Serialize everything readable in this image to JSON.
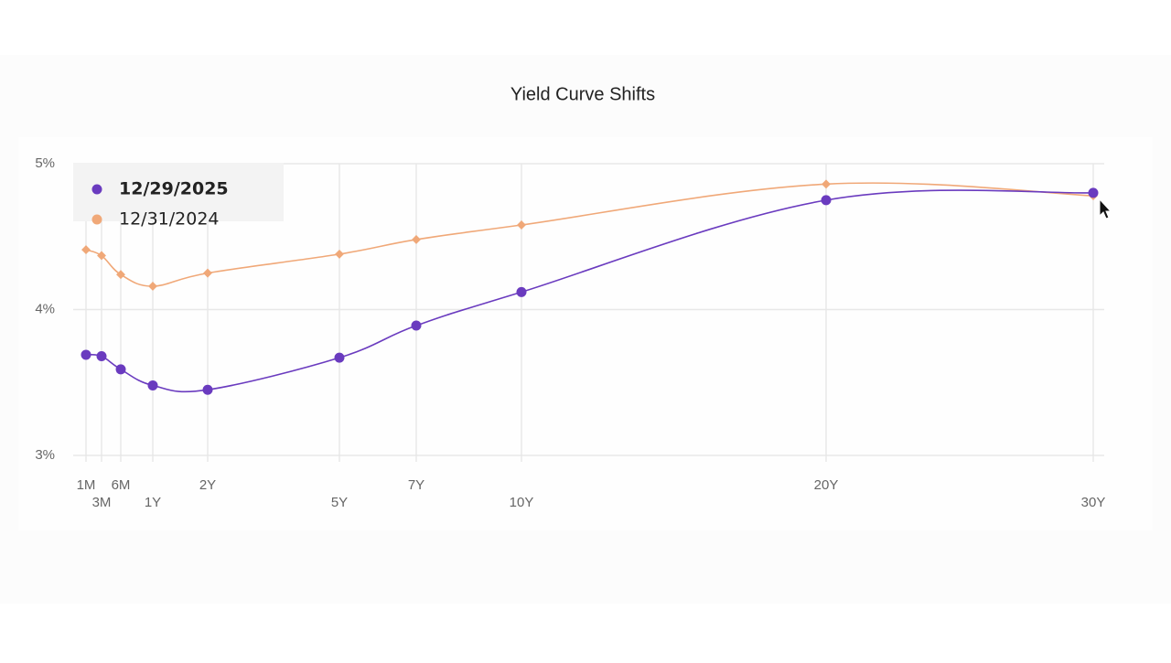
{
  "chart_data": {
    "type": "line",
    "title": "Yield Curve Shifts",
    "categories": [
      "1M",
      "3M",
      "6M",
      "1Y",
      "2Y",
      "5Y",
      "7Y",
      "10Y",
      "20Y",
      "30Y"
    ],
    "series": [
      {
        "name": "12/29/2025",
        "color": "#6a3bbf",
        "values": [
          3.69,
          3.68,
          3.59,
          3.48,
          3.45,
          3.67,
          3.89,
          4.12,
          4.75,
          4.8
        ]
      },
      {
        "name": "12/31/2024",
        "color": "#f0a878",
        "values": [
          4.41,
          4.37,
          4.24,
          4.16,
          4.25,
          4.38,
          4.48,
          4.58,
          4.86,
          4.78
        ]
      }
    ],
    "ylim": [
      3,
      5
    ],
    "yticks": [
      {
        "value": 3,
        "label": "3%"
      },
      {
        "value": 4,
        "label": "4%"
      },
      {
        "value": 5,
        "label": "5%"
      }
    ],
    "grid": true,
    "legend": "top-left"
  }
}
